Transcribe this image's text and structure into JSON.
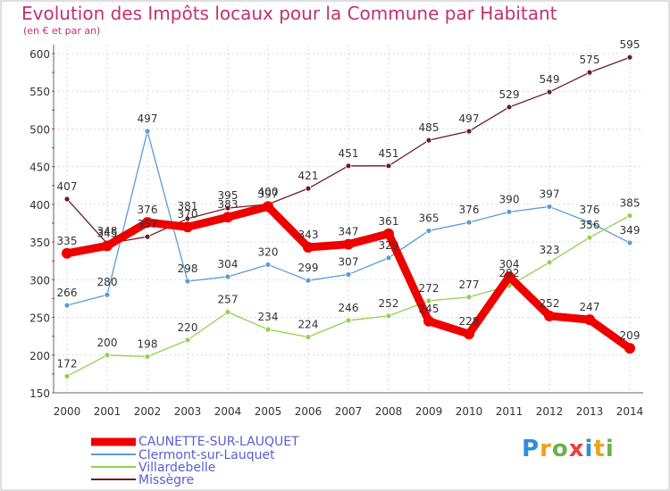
{
  "title": "Evolution des Impôts locaux pour la Commune par Habitant",
  "subtitle": "(en € et par an)",
  "logo_text": "Proxiti",
  "chart_data": {
    "type": "line",
    "x": [
      "2000",
      "2001",
      "2002",
      "2003",
      "2004",
      "2005",
      "2006",
      "2007",
      "2008",
      "2009",
      "2010",
      "2011",
      "2012",
      "2013",
      "2014"
    ],
    "ylim": [
      150,
      600
    ],
    "yticks": [
      150,
      200,
      250,
      300,
      350,
      400,
      450,
      500,
      550,
      600
    ],
    "grid": true,
    "legend_position": "bottom-left",
    "series": [
      {
        "name": "CAUNETTE-SUR-LAUQUET",
        "color": "#ee0000",
        "values": [
          335,
          345,
          376,
          370,
          383,
          397,
          343,
          347,
          361,
          245,
          228,
          304,
          252,
          247,
          209
        ]
      },
      {
        "name": "Clermont-sur-Lauquet",
        "color": "#5b9bd5",
        "values": [
          266,
          280,
          497,
          298,
          304,
          320,
          299,
          307,
          329,
          365,
          376,
          390,
          397,
          376,
          349
        ]
      },
      {
        "name": "Villardebelle",
        "color": "#92d050",
        "values": [
          172,
          200,
          198,
          220,
          257,
          234,
          224,
          246,
          252,
          272,
          277,
          292,
          323,
          356,
          385
        ]
      },
      {
        "name": "Missègre",
        "color": "#6b1f22",
        "values": [
          407,
          348,
          357,
          381,
          395,
          400,
          421,
          451,
          451,
          485,
          497,
          529,
          549,
          575,
          595
        ]
      }
    ]
  }
}
